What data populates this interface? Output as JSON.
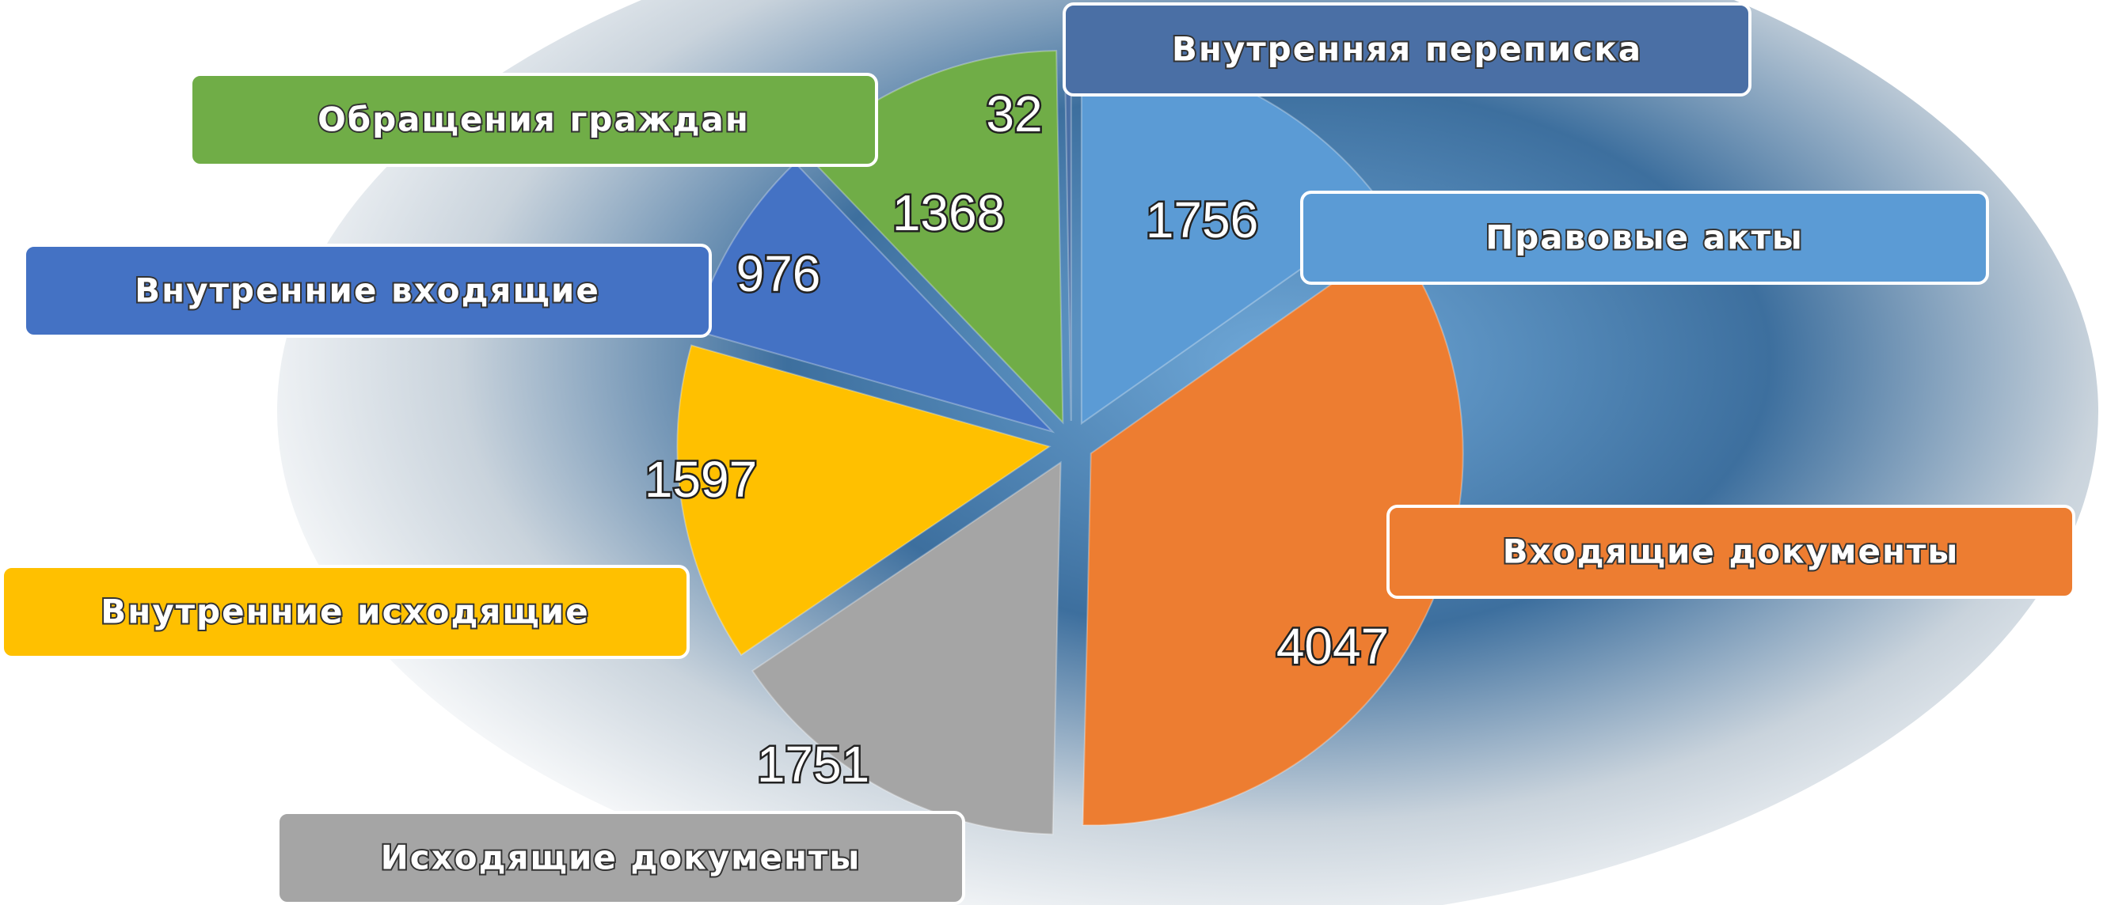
{
  "chart_data": {
    "type": "pie",
    "categories": [
      "Правовые акты",
      "Входящие документы",
      "Исходящие документы",
      "Внутренние исходящие",
      "Внутренние входящие",
      "Обращения граждан",
      "Внутренняя переписка"
    ],
    "values": [
      1756,
      4047,
      1751,
      1597,
      976,
      1368,
      32
    ],
    "colors": [
      "#5b9bd5",
      "#ed7d31",
      "#a5a5a5",
      "#ffc000",
      "#4472c4",
      "#70ad47",
      "#4a6fa5"
    ]
  }
}
